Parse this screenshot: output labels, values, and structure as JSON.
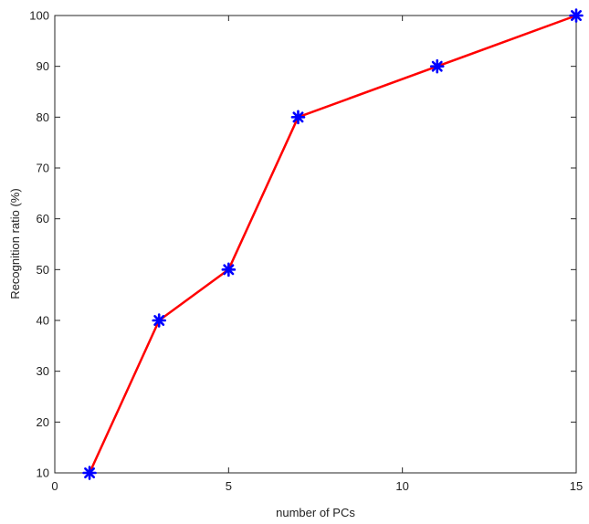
{
  "chart_data": {
    "type": "line",
    "title": "",
    "xlabel": "number of PCs",
    "ylabel": "Recognition ratio (%)",
    "xlim": [
      0,
      15
    ],
    "ylim": [
      10,
      100
    ],
    "xticks": [
      0,
      5,
      10,
      15
    ],
    "yticks": [
      10,
      20,
      30,
      40,
      50,
      60,
      70,
      80,
      90,
      100
    ],
    "grid": false,
    "legend": "none",
    "series": [
      {
        "x": [
          1,
          3,
          5,
          7,
          11,
          15
        ],
        "y": [
          10,
          40,
          50,
          80,
          90,
          100
        ],
        "line_color": "#ff0000",
        "marker": "asterisk",
        "marker_color": "#0000ff"
      }
    ]
  }
}
